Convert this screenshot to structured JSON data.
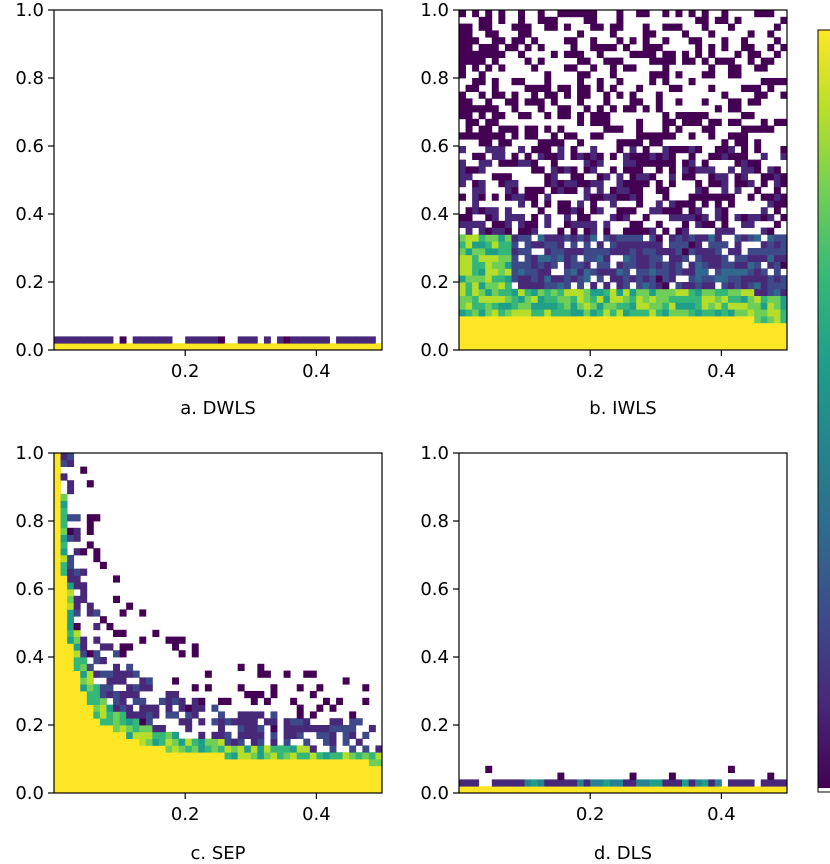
{
  "chart_data": [
    {
      "type": "heatmap",
      "title": "",
      "caption": "a. DWLS",
      "xlabel": "",
      "ylabel": "",
      "xlim": [
        0,
        0.5
      ],
      "ylim": [
        0,
        1.0
      ],
      "x_ticks": [
        "0.2",
        "0.4"
      ],
      "y_ticks": [
        "0.0",
        "0.2",
        "0.4",
        "0.6",
        "0.8",
        "1.0"
      ],
      "pattern": "flat_band",
      "description": "saturated band along y<0.02, sparse dark cells up to y~0.03"
    },
    {
      "type": "heatmap",
      "title": "",
      "caption": "b. IWLS",
      "xlabel": "",
      "ylabel": "",
      "xlim": [
        0,
        0.5
      ],
      "ylim": [
        0,
        1.0
      ],
      "x_ticks": [
        "0.2",
        "0.4"
      ],
      "y_ticks": [
        "0.0",
        "0.2",
        "0.4",
        "0.6",
        "0.8",
        "1.0"
      ],
      "pattern": "broad_noise",
      "description": "yellow region below ~0.1, green-teal gradient to ~0.3, sparse dark noise to 1.0"
    },
    {
      "type": "heatmap",
      "title": "",
      "caption": "c. SEP",
      "xlabel": "",
      "ylabel": "",
      "xlim": [
        0,
        0.5
      ],
      "ylim": [
        0,
        1.0
      ],
      "x_ticks": [
        "0.2",
        "0.4"
      ],
      "y_ticks": [
        "0.0",
        "0.2",
        "0.4",
        "0.6",
        "0.8",
        "1.0"
      ],
      "pattern": "decay_curve",
      "description": "yellow region under hyperbolic boundary decaying from 1.0 near x=0 to ~0.1 at x=0.5"
    },
    {
      "type": "heatmap",
      "title": "",
      "caption": "d. DLS",
      "xlabel": "",
      "ylabel": "",
      "xlim": [
        0,
        0.5
      ],
      "ylim": [
        0,
        1.0
      ],
      "x_ticks": [
        "0.2",
        "0.4"
      ],
      "y_ticks": [
        "0.0",
        "0.2",
        "0.4",
        "0.6",
        "0.8",
        "1.0"
      ],
      "pattern": "flat_band_teal",
      "description": "yellow band below ~0.02 with teal cells to ~0.04 along the bottom"
    }
  ],
  "colorbar": {
    "colormap": "viridis",
    "color_low": "#440154",
    "color_high": "#fde725",
    "tick_labels": []
  },
  "colors": {
    "viridis": [
      "#440154",
      "#482878",
      "#3e4989",
      "#31688e",
      "#26828e",
      "#1f9e89",
      "#35b779",
      "#6ece58",
      "#b5de2b",
      "#fde725"
    ]
  }
}
